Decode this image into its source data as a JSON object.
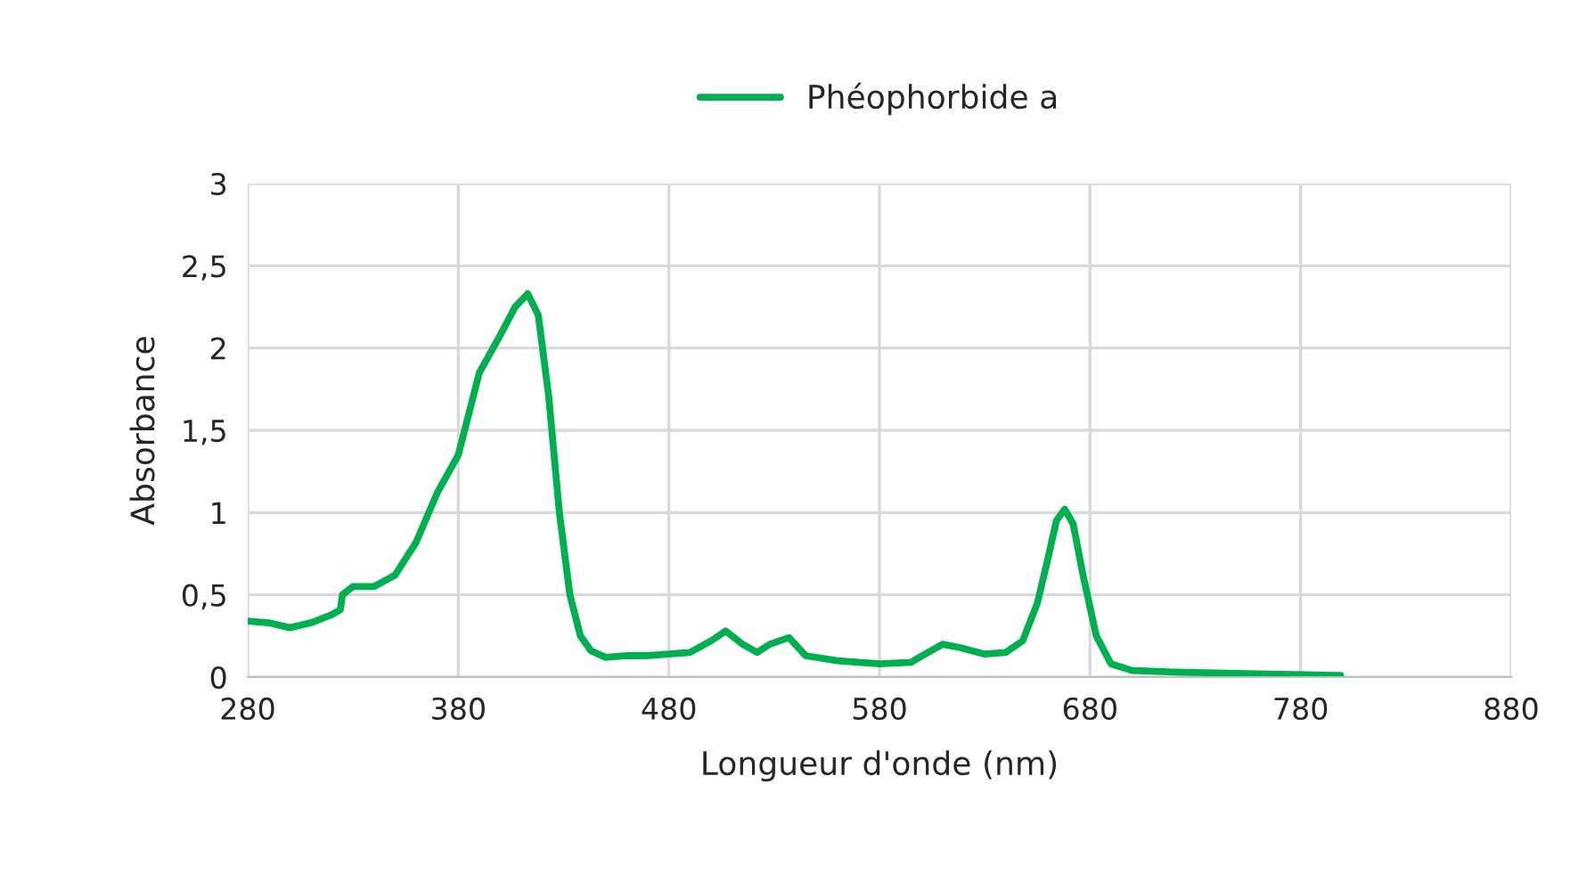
{
  "chart_data": {
    "type": "line",
    "xlabel": "Longueur d'onde (nm)",
    "ylabel": "Absorbance",
    "x": [
      280,
      290,
      300,
      310,
      320,
      324,
      325,
      330,
      340,
      350,
      360,
      370,
      380,
      390,
      400,
      407,
      413,
      418,
      423,
      428,
      433,
      438,
      443,
      450,
      460,
      470,
      480,
      490,
      500,
      507,
      515,
      522,
      528,
      537,
      545,
      560,
      580,
      595,
      603,
      610,
      618,
      630,
      640,
      648,
      655,
      660,
      664,
      668,
      672,
      677,
      683,
      690,
      700,
      720,
      760,
      799
    ],
    "series": [
      {
        "name": "Phéophorbide a",
        "color": "#00b050",
        "values": [
          0.34,
          0.33,
          0.3,
          0.33,
          0.38,
          0.41,
          0.5,
          0.55,
          0.55,
          0.62,
          0.82,
          1.12,
          1.35,
          1.85,
          2.08,
          2.25,
          2.33,
          2.2,
          1.7,
          1.0,
          0.5,
          0.25,
          0.16,
          0.12,
          0.13,
          0.13,
          0.14,
          0.15,
          0.22,
          0.28,
          0.2,
          0.15,
          0.2,
          0.24,
          0.13,
          0.1,
          0.08,
          0.09,
          0.15,
          0.2,
          0.18,
          0.14,
          0.15,
          0.22,
          0.45,
          0.72,
          0.95,
          1.02,
          0.93,
          0.6,
          0.25,
          0.08,
          0.04,
          0.03,
          0.02,
          0.01
        ]
      }
    ],
    "xlim": [
      280,
      880
    ],
    "xticks": [
      280,
      380,
      480,
      580,
      680,
      780,
      880
    ],
    "ylim": [
      0,
      3
    ],
    "yticks": [
      0,
      {
        "value": 0.5,
        "label": "0,5"
      },
      1,
      {
        "value": 1.5,
        "label": "1,5"
      },
      2,
      {
        "value": 2.5,
        "label": "2,5"
      },
      3
    ],
    "grid": true,
    "legend": "top",
    "marker": "none",
    "line_style": "solid"
  }
}
